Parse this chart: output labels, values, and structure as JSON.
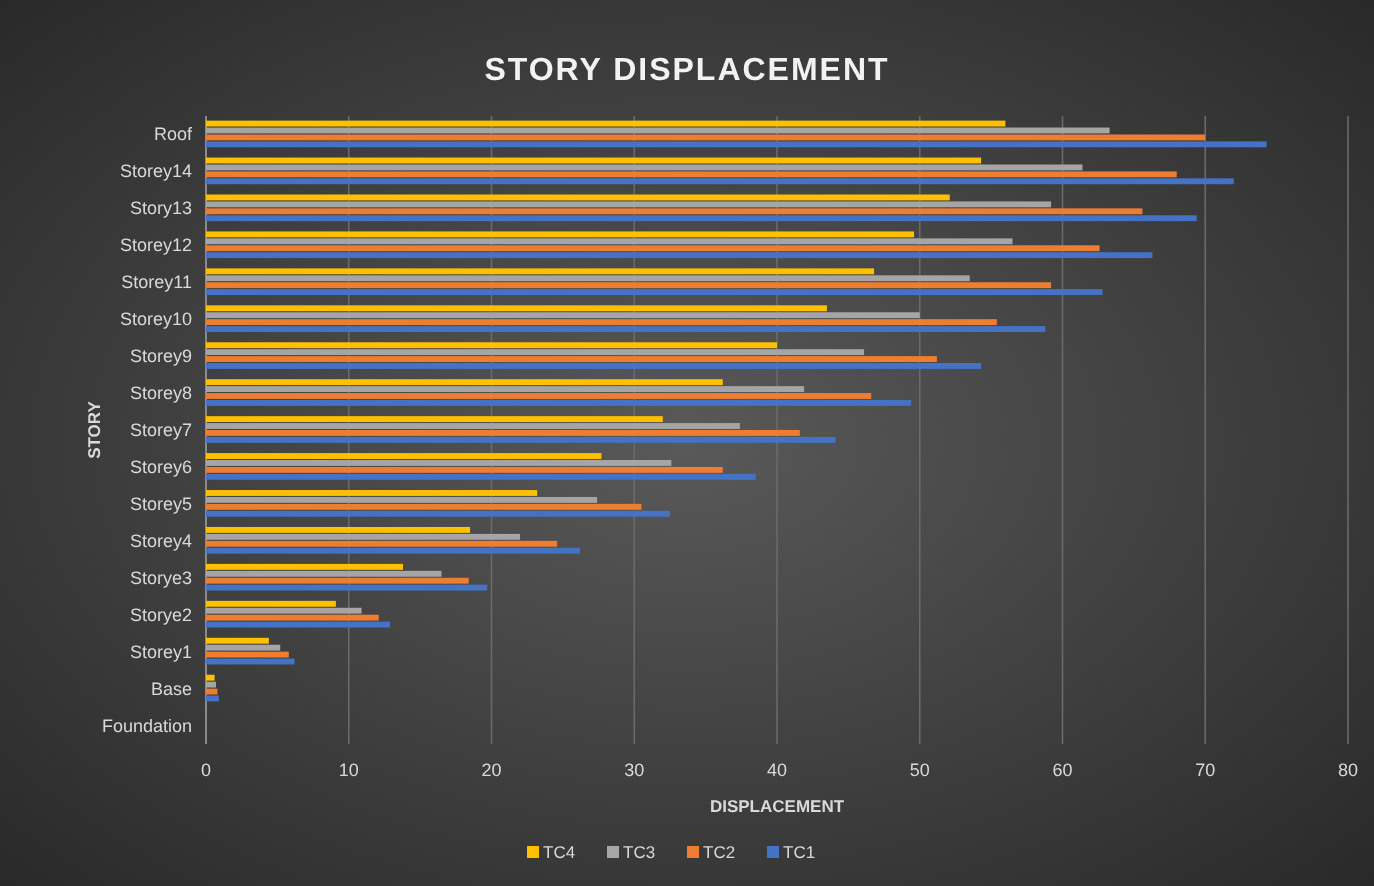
{
  "chart_data": {
    "type": "bar",
    "orientation": "horizontal",
    "title": "STORY DISPLACEMENT",
    "xlabel": "DISPLACEMENT",
    "ylabel": "STORY",
    "categories": [
      "Roof",
      "Storey14",
      "Story13",
      "Storey12",
      "Storey11",
      "Storey10",
      "Storey9",
      "Storey8",
      "Storey7",
      "Storey6",
      "Storey5",
      "Storey4",
      "Storye3",
      "Storye2",
      "Storey1",
      "Base",
      "Foundation"
    ],
    "series": [
      {
        "name": "TC4",
        "color": "#ffc000",
        "values": [
          56,
          54.3,
          52.1,
          49.6,
          46.8,
          43.5,
          40,
          36.2,
          32,
          27.7,
          23.2,
          18.5,
          13.8,
          9.1,
          4.4,
          0.6,
          0
        ]
      },
      {
        "name": "TC3",
        "color": "#a5a5a5",
        "values": [
          63.3,
          61.4,
          59.2,
          56.5,
          53.5,
          50,
          46.1,
          41.9,
          37.4,
          32.6,
          27.4,
          22,
          16.5,
          10.9,
          5.2,
          0.7,
          0
        ]
      },
      {
        "name": "TC2",
        "color": "#ed7d31",
        "values": [
          70,
          68,
          65.6,
          62.6,
          59.2,
          55.4,
          51.2,
          46.6,
          41.6,
          36.2,
          30.5,
          24.6,
          18.4,
          12.1,
          5.8,
          0.8,
          0
        ]
      },
      {
        "name": "TC1",
        "color": "#4472c4",
        "values": [
          74.3,
          72,
          69.4,
          66.3,
          62.8,
          58.8,
          54.3,
          49.4,
          44.1,
          38.5,
          32.5,
          26.2,
          19.7,
          12.9,
          6.2,
          0.9,
          0
        ]
      }
    ],
    "xlim": [
      0,
      80
    ],
    "xticks": [
      0,
      10,
      20,
      30,
      40,
      50,
      60,
      70,
      80
    ],
    "grid": "x",
    "legend": "bottom"
  }
}
